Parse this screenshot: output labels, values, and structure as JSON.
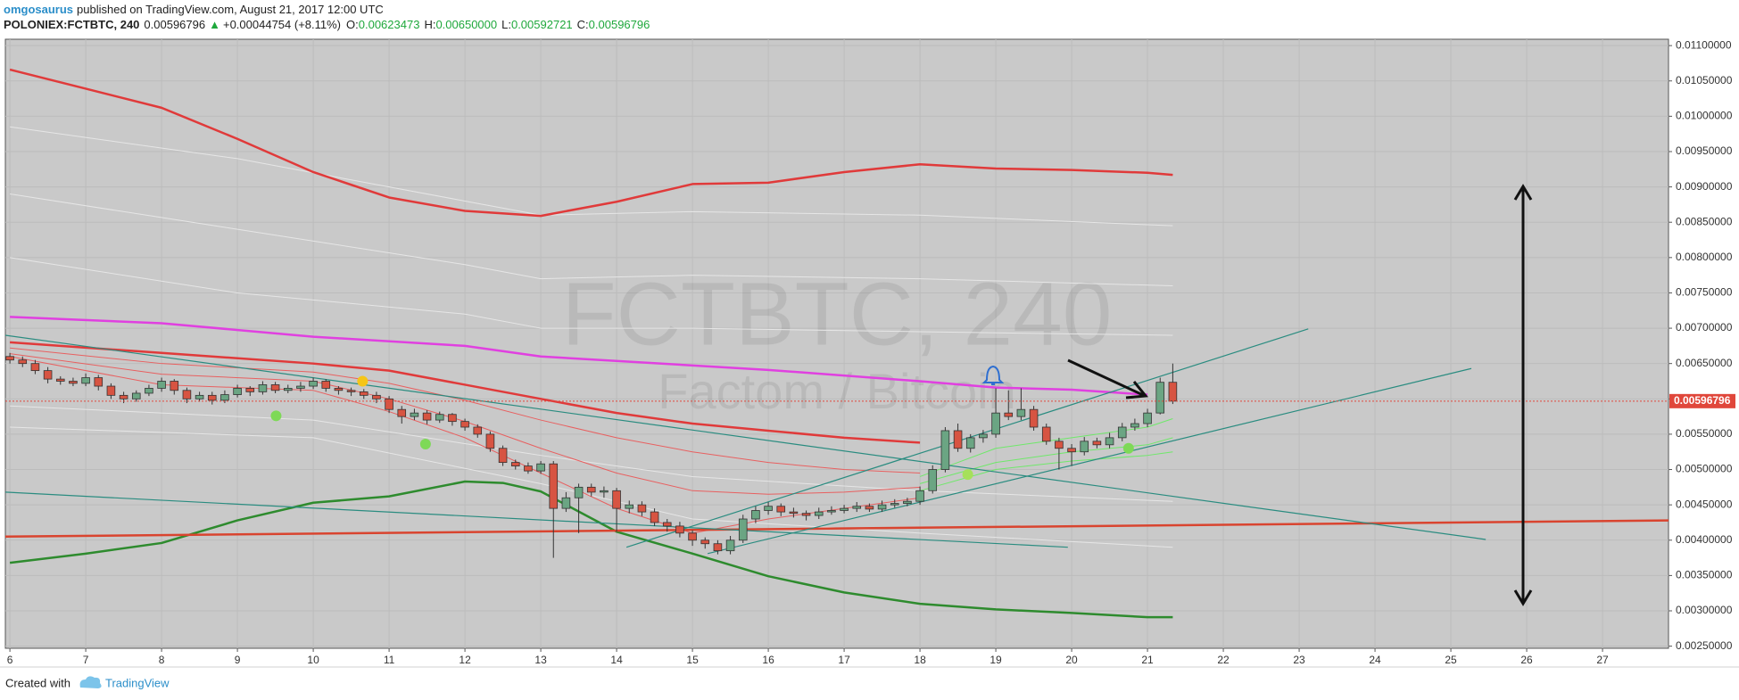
{
  "header": {
    "author": "omgosaurus",
    "published": "published on TradingView.com, August 21, 2017 12:00 UTC",
    "symbol": "POLONIEX:FCTBTC, 240",
    "last": "0.00596796",
    "arrow": "▲",
    "change": "+0.00044754 (+8.11%)",
    "ohlc": [
      {
        "label": "O:",
        "value": "0.00623473"
      },
      {
        "label": "H:",
        "value": "0.00650000"
      },
      {
        "label": "L:",
        "value": "0.00592721"
      },
      {
        "label": "C:",
        "value": "0.00596796"
      }
    ]
  },
  "footer": {
    "created_with": "Created with",
    "brand": "TradingView"
  },
  "chart_data": {
    "type": "candlestick",
    "watermark": "FCTBTC, 240",
    "watermark_subtitle": "Factom / Bitcoin",
    "up_color": "#6ba583",
    "down_color": "#d75442",
    "grid": true,
    "xlim": [
      5.94,
      27.87
    ],
    "ylim": [
      0.00247,
      0.01109
    ],
    "xticks": [
      6,
      7,
      8,
      9,
      10,
      11,
      12,
      13,
      14,
      15,
      16,
      17,
      18,
      19,
      20,
      21,
      22,
      23,
      24,
      25,
      26,
      27
    ],
    "yticks": [
      {
        "value": 0.011,
        "label": "0.01100000"
      },
      {
        "value": 0.0105,
        "label": "0.01050000"
      },
      {
        "value": 0.01,
        "label": "0.01000000"
      },
      {
        "value": 0.0095,
        "label": "0.00950000"
      },
      {
        "value": 0.009,
        "label": "0.00900000"
      },
      {
        "value": 0.0085,
        "label": "0.00850000"
      },
      {
        "value": 0.008,
        "label": "0.00800000"
      },
      {
        "value": 0.0075,
        "label": "0.00750000"
      },
      {
        "value": 0.007,
        "label": "0.00700000"
      },
      {
        "value": 0.0065,
        "label": "0.00650000"
      },
      {
        "value": 0.006,
        "label": "0.00600000"
      },
      {
        "value": 0.0055,
        "label": "0.00550000"
      },
      {
        "value": 0.005,
        "label": "0.00500000"
      },
      {
        "value": 0.0045,
        "label": "0.00450000"
      },
      {
        "value": 0.004,
        "label": "0.00400000"
      },
      {
        "value": 0.0035,
        "label": "0.00350000"
      },
      {
        "value": 0.003,
        "label": "0.00300000"
      },
      {
        "value": 0.0025,
        "label": "0.00250000"
      }
    ],
    "last_price": 0.00596796,
    "last_price_color": "#e0473b",
    "x": [
      6,
      6.1667,
      6.3333,
      6.5,
      6.6667,
      6.8333,
      7,
      7.1667,
      7.3333,
      7.5,
      7.6667,
      7.8333,
      8,
      8.1667,
      8.3333,
      8.5,
      8.6667,
      8.8333,
      9,
      9.1667,
      9.3333,
      9.5,
      9.6667,
      9.8333,
      10,
      10.1667,
      10.3333,
      10.5,
      10.6667,
      10.8333,
      11,
      11.1667,
      11.3333,
      11.5,
      11.6667,
      11.8333,
      12,
      12.1667,
      12.3333,
      12.5,
      12.6667,
      12.8333,
      13,
      13.1667,
      13.3333,
      13.5,
      13.6667,
      13.8333,
      14,
      14.1667,
      14.3333,
      14.5,
      14.6667,
      14.8333,
      15,
      15.1667,
      15.3333,
      15.5,
      15.6667,
      15.8333,
      16,
      16.1667,
      16.3333,
      16.5,
      16.6667,
      16.8333,
      17,
      17.1667,
      17.3333,
      17.5,
      17.6667,
      17.8333,
      18,
      18.1667,
      18.3333,
      18.5,
      18.6667,
      18.8333,
      19,
      19.1667,
      19.3333,
      19.5,
      19.6667,
      19.8333,
      20,
      20.1667,
      20.3333,
      20.5,
      20.6667,
      20.8333,
      21,
      21.1667,
      21.3333
    ],
    "open": [
      0.0066,
      0.00655,
      0.0065,
      0.0064,
      0.00628,
      0.00625,
      0.00622,
      0.0063,
      0.00618,
      0.00605,
      0.006,
      0.00608,
      0.00615,
      0.00625,
      0.00612,
      0.006,
      0.00605,
      0.00598,
      0.00606,
      0.00615,
      0.0061,
      0.0062,
      0.00612,
      0.00615,
      0.00618,
      0.00625,
      0.00615,
      0.00612,
      0.0061,
      0.00605,
      0.006,
      0.00585,
      0.00575,
      0.0058,
      0.0057,
      0.00578,
      0.00568,
      0.0056,
      0.0055,
      0.0053,
      0.0051,
      0.00505,
      0.00498,
      0.00508,
      0.00445,
      0.0046,
      0.00475,
      0.00468,
      0.0047,
      0.00445,
      0.0045,
      0.0044,
      0.00425,
      0.0042,
      0.0041,
      0.004,
      0.00395,
      0.00385,
      0.004,
      0.0043,
      0.00442,
      0.00448,
      0.0044,
      0.00438,
      0.00435,
      0.0044,
      0.00442,
      0.00445,
      0.00448,
      0.00444,
      0.0045,
      0.00452,
      0.00455,
      0.0047,
      0.005,
      0.00555,
      0.0053,
      0.00545,
      0.0055,
      0.0058,
      0.00575,
      0.00585,
      0.0056,
      0.0054,
      0.0053,
      0.00525,
      0.0054,
      0.00535,
      0.00545,
      0.0056,
      0.00565,
      0.0058,
      0.00623473
    ],
    "high": [
      0.00665,
      0.0066,
      0.00655,
      0.00645,
      0.00632,
      0.0063,
      0.00636,
      0.00634,
      0.00622,
      0.0061,
      0.00612,
      0.0062,
      0.0063,
      0.00628,
      0.00616,
      0.0061,
      0.0061,
      0.00612,
      0.0062,
      0.00618,
      0.00625,
      0.00624,
      0.0062,
      0.00624,
      0.0063,
      0.00628,
      0.00618,
      0.00616,
      0.00614,
      0.0061,
      0.00604,
      0.0059,
      0.00586,
      0.00584,
      0.00582,
      0.0058,
      0.00572,
      0.00564,
      0.00554,
      0.00534,
      0.00514,
      0.0051,
      0.00512,
      0.00512,
      0.00468,
      0.0048,
      0.0048,
      0.00476,
      0.00474,
      0.00456,
      0.00455,
      0.00445,
      0.0043,
      0.00426,
      0.00414,
      0.00404,
      0.004,
      0.00406,
      0.00436,
      0.00448,
      0.00454,
      0.00452,
      0.00446,
      0.00442,
      0.00446,
      0.00448,
      0.0045,
      0.00454,
      0.00452,
      0.00456,
      0.00458,
      0.0046,
      0.00476,
      0.00506,
      0.0056,
      0.00565,
      0.0055,
      0.00556,
      0.00615,
      0.00612,
      0.00615,
      0.0059,
      0.00565,
      0.00545,
      0.00536,
      0.00546,
      0.00545,
      0.00552,
      0.00566,
      0.00572,
      0.00586,
      0.0063,
      0.0065
    ],
    "low": [
      0.0065,
      0.00645,
      0.00635,
      0.00622,
      0.0062,
      0.00618,
      0.00618,
      0.00612,
      0.006,
      0.00594,
      0.00596,
      0.00604,
      0.0061,
      0.00606,
      0.00594,
      0.00596,
      0.00592,
      0.00594,
      0.00602,
      0.00604,
      0.00606,
      0.00608,
      0.00608,
      0.0061,
      0.00614,
      0.0061,
      0.00606,
      0.00604,
      0.006,
      0.00594,
      0.0058,
      0.00565,
      0.0057,
      0.00564,
      0.00566,
      0.00562,
      0.00555,
      0.00545,
      0.00525,
      0.00505,
      0.005,
      0.00494,
      0.00494,
      0.00375,
      0.0044,
      0.0041,
      0.00462,
      0.0046,
      0.00412,
      0.00438,
      0.00434,
      0.0042,
      0.00412,
      0.00404,
      0.00392,
      0.00388,
      0.0038,
      0.0038,
      0.00396,
      0.00424,
      0.00436,
      0.00434,
      0.00432,
      0.00428,
      0.0043,
      0.00436,
      0.00438,
      0.0044,
      0.0044,
      0.0044,
      0.00446,
      0.00448,
      0.0045,
      0.00466,
      0.00496,
      0.00525,
      0.00524,
      0.00538,
      0.00545,
      0.0057,
      0.0057,
      0.00555,
      0.00535,
      0.005,
      0.00505,
      0.0052,
      0.0053,
      0.0053,
      0.0054,
      0.00555,
      0.0056,
      0.00578,
      0.00592721
    ],
    "close": [
      0.00655,
      0.0065,
      0.0064,
      0.00628,
      0.00625,
      0.00622,
      0.0063,
      0.00618,
      0.00605,
      0.006,
      0.00608,
      0.00615,
      0.00625,
      0.00612,
      0.006,
      0.00605,
      0.00598,
      0.00606,
      0.00615,
      0.0061,
      0.0062,
      0.00612,
      0.00615,
      0.00618,
      0.00625,
      0.00615,
      0.00612,
      0.0061,
      0.00605,
      0.006,
      0.00585,
      0.00575,
      0.0058,
      0.0057,
      0.00578,
      0.00568,
      0.0056,
      0.0055,
      0.0053,
      0.0051,
      0.00505,
      0.00498,
      0.00508,
      0.00445,
      0.0046,
      0.00475,
      0.00468,
      0.0047,
      0.00445,
      0.0045,
      0.0044,
      0.00425,
      0.0042,
      0.0041,
      0.004,
      0.00395,
      0.00385,
      0.004,
      0.0043,
      0.00442,
      0.00448,
      0.0044,
      0.00438,
      0.00435,
      0.0044,
      0.00442,
      0.00445,
      0.00448,
      0.00444,
      0.0045,
      0.00452,
      0.00455,
      0.0047,
      0.005,
      0.00555,
      0.0053,
      0.00545,
      0.0055,
      0.0058,
      0.00575,
      0.00585,
      0.0056,
      0.0054,
      0.0053,
      0.00525,
      0.0054,
      0.00535,
      0.00545,
      0.0056,
      0.00565,
      0.0058,
      0.00623473,
      0.00596796
    ],
    "ribbons": [
      {
        "color": "#e6e6e6",
        "x": [
          6,
          9,
          12,
          13,
          15,
          18,
          21.3333
        ],
        "values": [
          0.00985,
          0.0094,
          0.0088,
          0.0086,
          0.00865,
          0.0086,
          0.00845
        ]
      },
      {
        "color": "#e6e6e6",
        "x": [
          6,
          9,
          12,
          13,
          15,
          18,
          21.3333
        ],
        "values": [
          0.0089,
          0.0084,
          0.0079,
          0.0077,
          0.00775,
          0.0077,
          0.0076
        ]
      },
      {
        "color": "#e6e6e6",
        "x": [
          6,
          9,
          12,
          13,
          15,
          18,
          21.3333
        ],
        "values": [
          0.008,
          0.0075,
          0.0072,
          0.007,
          0.007,
          0.00695,
          0.0069
        ]
      },
      {
        "color": "#e6e6e6",
        "x": [
          6,
          10,
          13,
          15,
          18,
          21.3333
        ],
        "values": [
          0.0059,
          0.0057,
          0.0052,
          0.0049,
          0.0047,
          0.00455
        ]
      },
      {
        "color": "#e6e6e6",
        "x": [
          6,
          10,
          13,
          15,
          18,
          21.3333
        ],
        "values": [
          0.0056,
          0.00545,
          0.0048,
          0.0043,
          0.0041,
          0.0039
        ]
      },
      {
        "color": "#e86060",
        "x": [
          6,
          8,
          10,
          11,
          12,
          13,
          14,
          15,
          16,
          17,
          18
        ],
        "values": [
          0.00672,
          0.0065,
          0.00638,
          0.00622,
          0.00598,
          0.0057,
          0.00545,
          0.00525,
          0.0051,
          0.005,
          0.00495
        ]
      },
      {
        "color": "#e86060",
        "x": [
          6,
          8,
          10,
          11,
          12,
          13,
          14,
          15,
          16,
          17,
          18
        ],
        "values": [
          0.00664,
          0.00635,
          0.00625,
          0.006,
          0.00568,
          0.0053,
          0.00495,
          0.0047,
          0.00465,
          0.00468,
          0.00475
        ]
      },
      {
        "color": "#e86060",
        "x": [
          6,
          8,
          10,
          11,
          12,
          13,
          14,
          15,
          16,
          17,
          18
        ],
        "values": [
          0.0066,
          0.0062,
          0.00612,
          0.00582,
          0.00545,
          0.00495,
          0.00445,
          0.0041,
          0.0043,
          0.00445,
          0.0046
        ]
      },
      {
        "color": "#6fe86a",
        "x": [
          18,
          19,
          20,
          21,
          21.3333
        ],
        "values": [
          0.0049,
          0.0053,
          0.00545,
          0.0056,
          0.00572
        ]
      },
      {
        "color": "#6fe86a",
        "x": [
          18,
          19,
          20,
          21,
          21.3333
        ],
        "values": [
          0.0048,
          0.0051,
          0.00525,
          0.00535,
          0.00545
        ]
      },
      {
        "color": "#6fe86a",
        "x": [
          18,
          19,
          20,
          21,
          21.3333
        ],
        "values": [
          0.0047,
          0.005,
          0.00512,
          0.0052,
          0.00525
        ]
      }
    ],
    "moving_averages": [
      {
        "color": "#e03a3a",
        "x": [
          6,
          7,
          8,
          9,
          10,
          11,
          12,
          13,
          14,
          15,
          16,
          17,
          18,
          19,
          20,
          21,
          21.3333
        ],
        "values": [
          0.01066,
          0.01039,
          0.01012,
          0.00968,
          0.00921,
          0.00885,
          0.00866,
          0.00859,
          0.00879,
          0.00904,
          0.00906,
          0.00921,
          0.00932,
          0.00926,
          0.00924,
          0.0092,
          0.00917
        ]
      },
      {
        "color": "#e040e0",
        "x": [
          6,
          8,
          10,
          12,
          13,
          16,
          18,
          19,
          20,
          21
        ],
        "values": [
          0.00716,
          0.00707,
          0.00688,
          0.00675,
          0.0066,
          0.00641,
          0.00625,
          0.00616,
          0.00613,
          0.00606
        ]
      },
      {
        "color": "#2e8b2e",
        "x": [
          6,
          7,
          8,
          9,
          10,
          11,
          12,
          12.5,
          13,
          14,
          15,
          16,
          17,
          18,
          19,
          20,
          21,
          21.3333
        ],
        "values": [
          0.00368,
          0.00381,
          0.00396,
          0.00428,
          0.00453,
          0.00462,
          0.00483,
          0.00481,
          0.00469,
          0.00412,
          0.00381,
          0.00349,
          0.00326,
          0.0031,
          0.00302,
          0.00297,
          0.00291,
          0.00291
        ]
      },
      {
        "color": "#e03a3a",
        "x": [
          6,
          8,
          10,
          11,
          12,
          13,
          14,
          15,
          16,
          17,
          18
        ],
        "values": [
          0.0068,
          0.00665,
          0.0065,
          0.0064,
          0.0062,
          0.006,
          0.0058,
          0.00565,
          0.00555,
          0.00545,
          0.00538
        ]
      },
      {
        "color": "#d9442f",
        "x": [
          5.94,
          27.87
        ],
        "values": [
          0.00405,
          0.00428
        ]
      }
    ],
    "trendlines": [
      {
        "color": "#2a8c80",
        "x": [
          5.94,
          25.46
        ],
        "values": [
          0.0069,
          0.00401
        ]
      },
      {
        "color": "#2a8c80",
        "x": [
          5.94,
          19.95
        ],
        "values": [
          0.00468,
          0.0039
        ]
      },
      {
        "color": "#2a8c80",
        "x": [
          14.13,
          23.12
        ],
        "values": [
          0.0039,
          0.00699
        ]
      },
      {
        "color": "#2a8c80",
        "x": [
          15.2,
          25.27
        ],
        "values": [
          0.00381,
          0.00643
        ]
      }
    ],
    "signals": [
      {
        "x": 10.65,
        "value": 0.00625,
        "color": "#f5c518"
      },
      {
        "x": 9.51,
        "value": 0.00576,
        "color": "#7ed957"
      },
      {
        "x": 11.48,
        "value": 0.00536,
        "color": "#7ed957"
      },
      {
        "x": 18.63,
        "value": 0.00493,
        "color": "#a6e05a"
      },
      {
        "x": 20.75,
        "value": 0.0053,
        "color": "#7ed957"
      }
    ]
  }
}
